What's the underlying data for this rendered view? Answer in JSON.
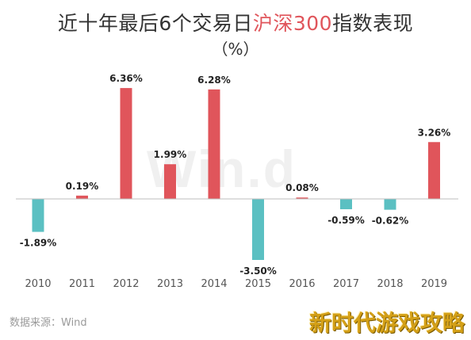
{
  "header": {
    "title_part1": "近十年最后6个交易日",
    "title_highlight": "沪深300",
    "title_part2": "指数表现",
    "subtitle": "（%）"
  },
  "watermark": "Win.d",
  "source": "数据来源：Wind",
  "corner_badge": "新时代游戏攻略",
  "colors": {
    "positive": "#e0555b",
    "negative": "#5bc0c2",
    "axis": "#bdbdbd"
  },
  "chart_data": {
    "type": "bar",
    "categories": [
      "2010",
      "2011",
      "2012",
      "2013",
      "2014",
      "2015",
      "2016",
      "2017",
      "2018",
      "2019"
    ],
    "values": [
      -1.89,
      0.19,
      6.36,
      1.99,
      6.28,
      -3.5,
      0.08,
      -0.59,
      -0.62,
      3.26
    ],
    "labels": [
      "-1.89%",
      "0.19%",
      "6.36%",
      "1.99%",
      "6.28%",
      "-3.50%",
      "0.08%",
      "-0.59%",
      "-0.62%",
      "3.26%"
    ],
    "title": "近十年最后6个交易日沪深300指数表现",
    "xlabel": "",
    "ylabel": "%",
    "grid": false
  }
}
